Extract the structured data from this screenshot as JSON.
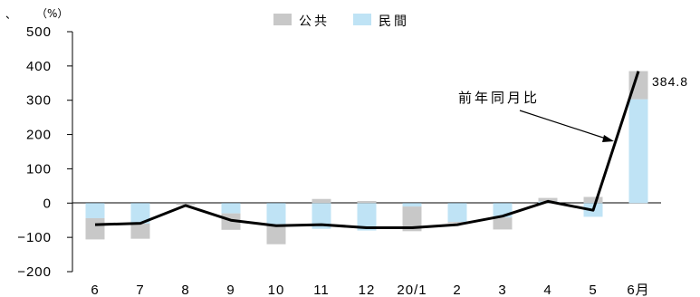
{
  "chart_data": {
    "type": "bar",
    "stacked": true,
    "corner_mark": "、",
    "unit": "（%）",
    "categories": [
      "6",
      "7",
      "8",
      "9",
      "10",
      "11",
      "12",
      "20/1",
      "2",
      "3",
      "4",
      "5",
      "6月"
    ],
    "series": [
      {
        "name": "公共",
        "color": "#c8c8c8",
        "values": [
          -62,
          -44,
          -5,
          -48,
          -58,
          12,
          6,
          -72,
          -3,
          -35,
          10,
          18,
          82
        ]
      },
      {
        "name": "民間",
        "color": "#bfe3f5",
        "values": [
          -44,
          -60,
          0,
          -30,
          -62,
          -75,
          -80,
          -10,
          -55,
          -42,
          5,
          -40,
          303
        ]
      }
    ],
    "line": {
      "name": "前年同月比",
      "color": "#000000",
      "values": [
        -63,
        -59,
        -7,
        -50,
        -66,
        -63,
        -72,
        -72,
        -63,
        -38,
        5,
        -21,
        384.8
      ]
    },
    "annotation": {
      "text": "前年同月比"
    },
    "data_label": {
      "text": "384.8"
    },
    "yticks": [
      "500",
      "400",
      "300",
      "200",
      "100",
      "0",
      "−100",
      "−200"
    ],
    "ylim": [
      -200,
      500
    ],
    "grid": false,
    "legend": "top-center"
  }
}
